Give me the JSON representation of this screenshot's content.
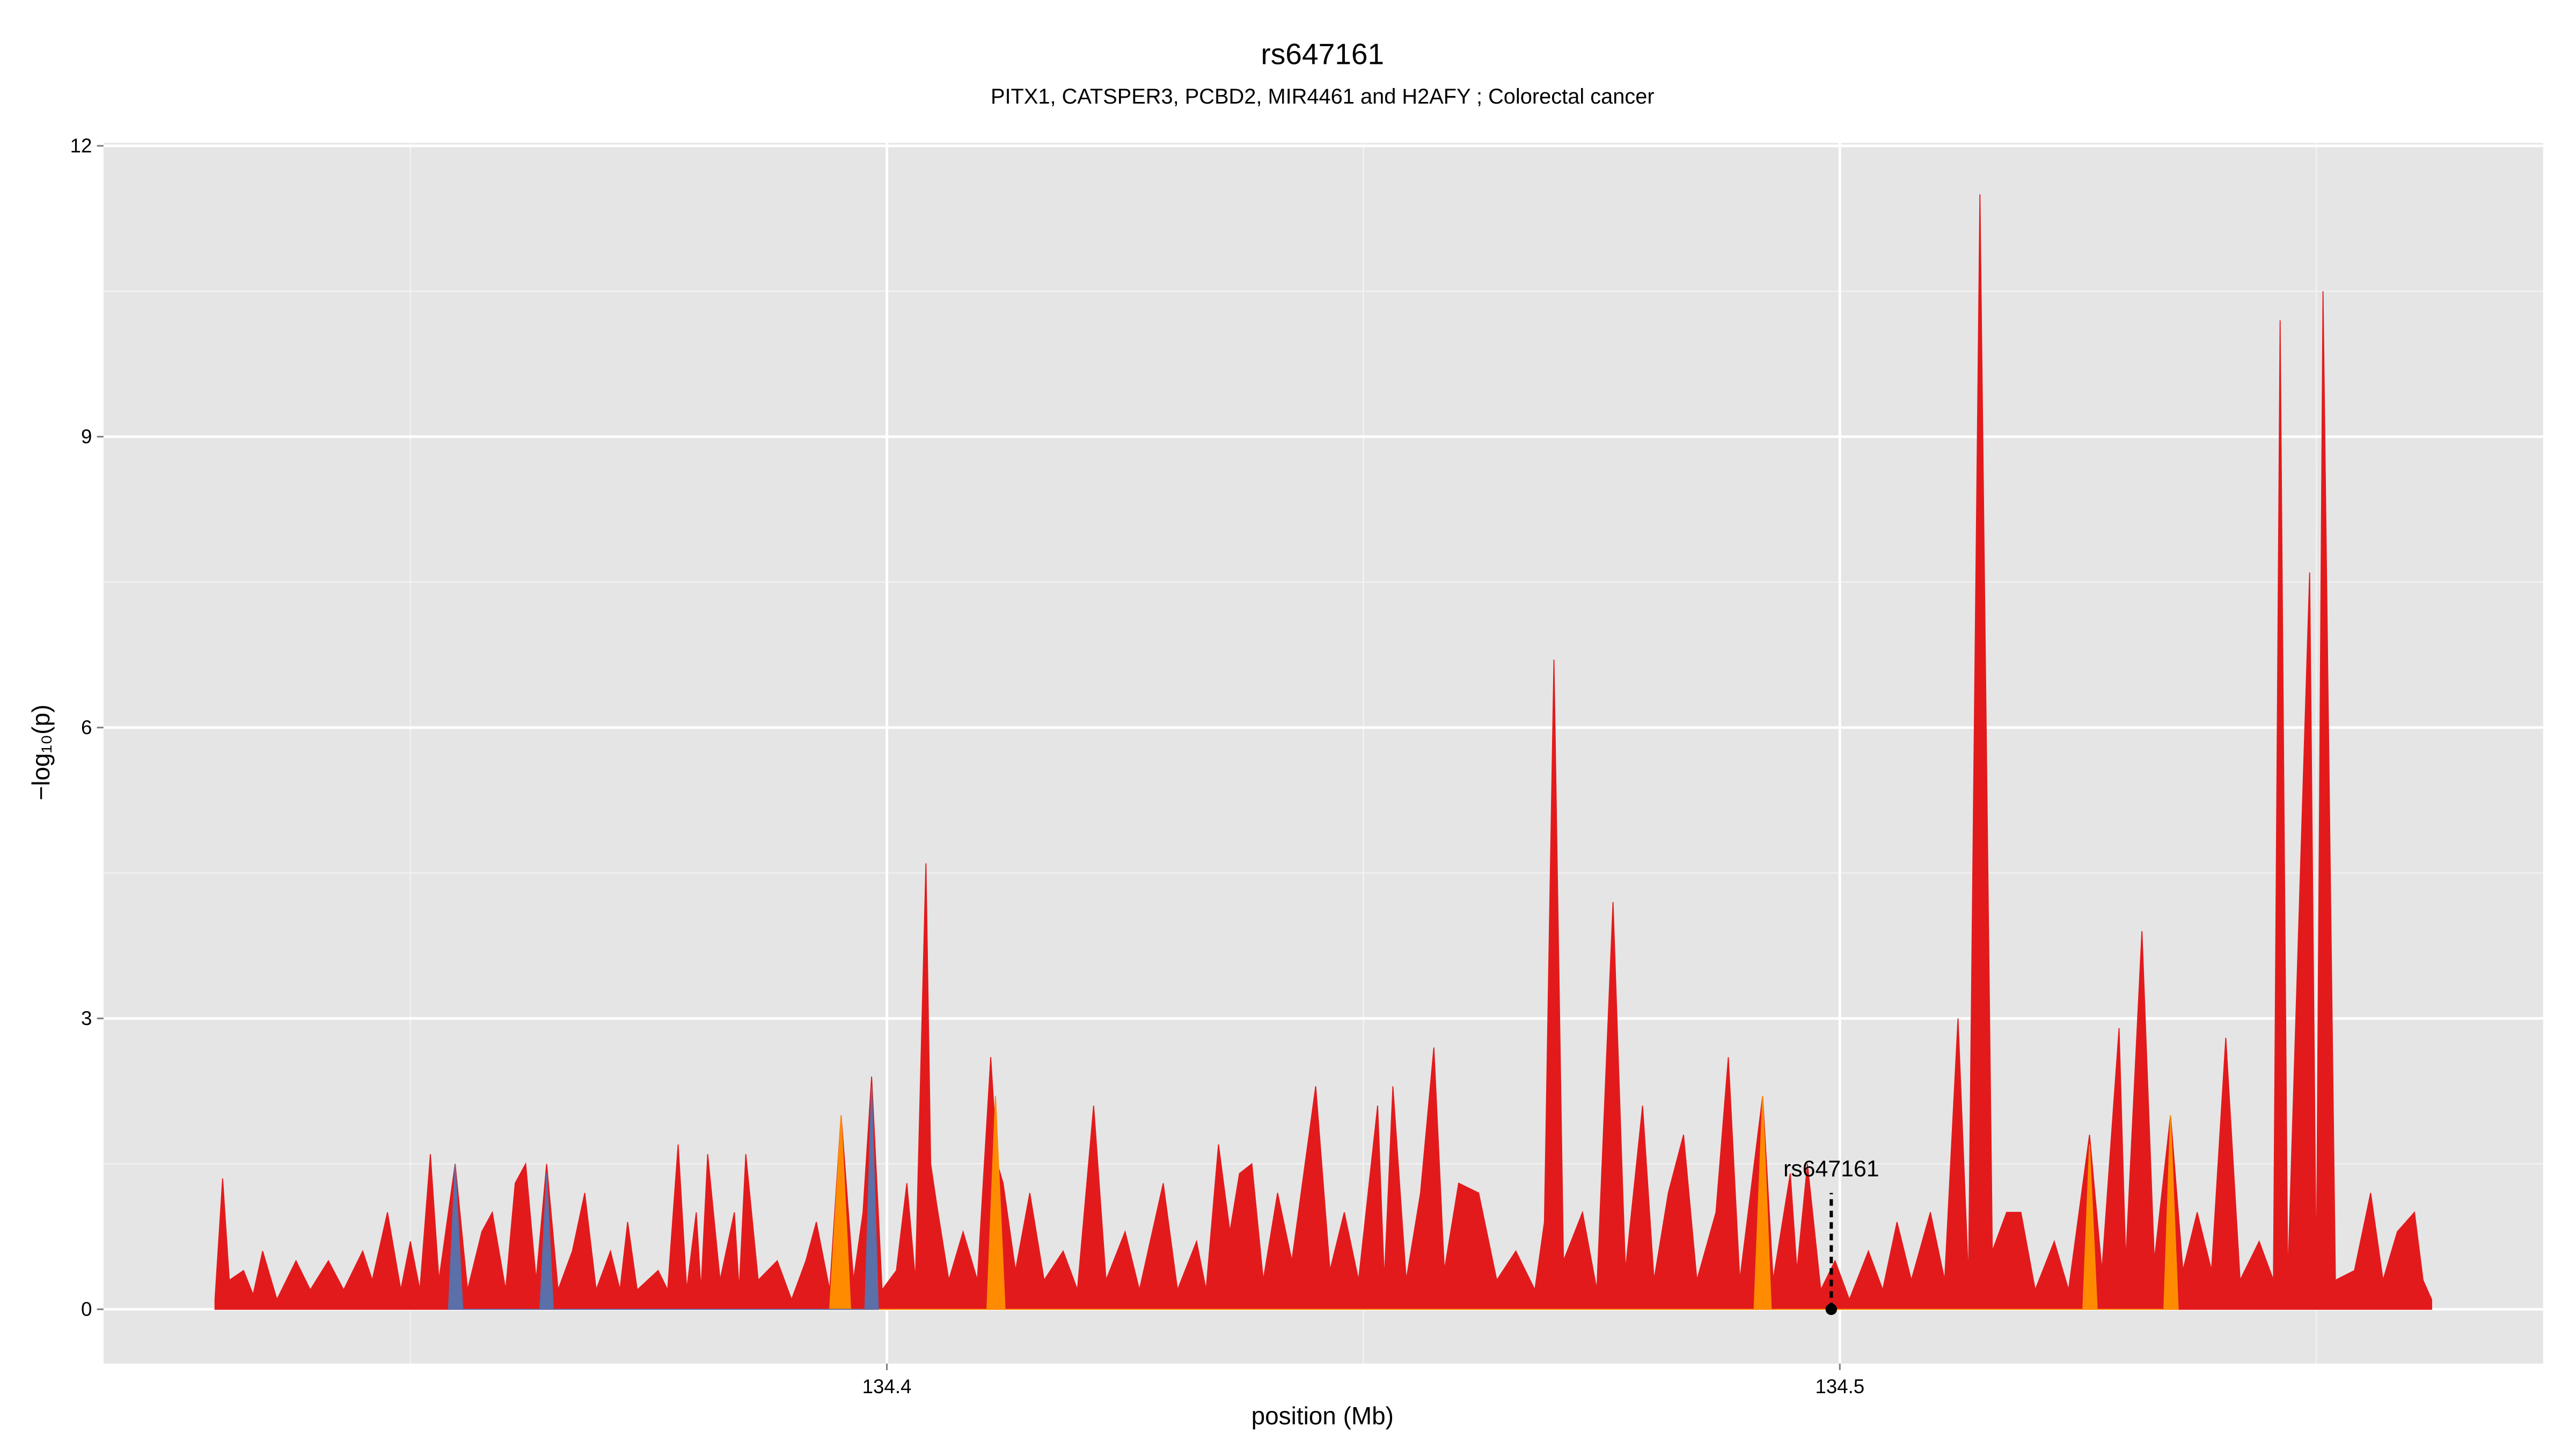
{
  "chart_data": {
    "type": "area",
    "title": "rs647161",
    "subtitle": "PITX1, CATSPER3, PCBD2, MIR4461 and H2AFY ; Colorectal cancer",
    "x_label": "position (Mb)",
    "y_label": "−log₁₀(p)",
    "xlim": [
      134.3178,
      134.5738
    ],
    "ylim": [
      -0.56,
      12.03
    ],
    "xticks": [
      134.4,
      134.5
    ],
    "yticks": [
      0,
      3,
      6,
      9,
      12
    ],
    "grid": true,
    "series": [
      {
        "color": "#e31a1c",
        "x": [
          134.3295,
          134.3303,
          134.331,
          134.3325,
          134.3335,
          134.3345,
          134.336,
          134.338,
          134.3395,
          134.3414,
          134.343,
          134.345,
          134.346,
          134.3476,
          134.349,
          134.35,
          134.351,
          134.3521,
          134.353,
          134.3547,
          134.356,
          134.3575,
          134.3586,
          134.36,
          134.361,
          134.3621,
          134.3632,
          134.3643,
          134.3655,
          134.367,
          134.3683,
          134.3695,
          134.371,
          134.372,
          134.3728,
          134.3738,
          134.376,
          134.377,
          134.3781,
          134.379,
          134.38,
          134.3805,
          134.3812,
          134.3825,
          134.384,
          134.3845,
          134.3852,
          134.3865,
          134.3885,
          134.39,
          134.3915,
          134.3926,
          134.394,
          134.3952,
          134.3965,
          134.3975,
          134.3984,
          134.3995,
          134.401,
          134.4021,
          134.403,
          134.4041,
          134.4046,
          134.4052,
          134.4065,
          134.408,
          134.4095,
          134.4109,
          134.4116,
          134.4122,
          134.4135,
          134.415,
          134.4165,
          134.4185,
          134.42,
          134.4217,
          134.423,
          134.425,
          134.4265,
          134.429,
          134.4305,
          134.4325,
          134.4335,
          134.4348,
          134.436,
          134.437,
          134.4383,
          134.4395,
          134.441,
          134.4425,
          134.445,
          134.4465,
          134.448,
          134.4495,
          134.4515,
          134.4522,
          134.4531,
          134.4545,
          134.456,
          134.4574,
          134.4585,
          134.46,
          134.4621,
          134.464,
          134.466,
          134.468,
          134.469,
          134.47,
          134.471,
          134.473,
          134.4745,
          134.4762,
          134.4775,
          134.4793,
          134.4805,
          134.482,
          134.4836,
          134.485,
          134.487,
          134.4883,
          134.4895,
          134.4919,
          134.493,
          134.4948,
          134.4955,
          134.4966,
          134.498,
          134.4995,
          134.501,
          134.503,
          134.5045,
          134.506,
          134.5075,
          134.5095,
          134.511,
          134.5124,
          134.5135,
          134.5147,
          134.516,
          134.5175,
          134.519,
          134.5205,
          134.5225,
          134.524,
          134.5262,
          134.5275,
          134.5293,
          134.53,
          134.5317,
          134.533,
          134.5347,
          134.536,
          134.5375,
          134.539,
          134.5405,
          134.542,
          134.544,
          134.5455,
          134.5462,
          134.547,
          134.5493,
          134.55,
          134.5507,
          134.552,
          134.554,
          134.5557,
          134.557,
          134.5585,
          134.5603,
          134.5612,
          134.5621
        ],
        "values": [
          0.1,
          1.35,
          0.3,
          0.4,
          0.15,
          0.6,
          0.1,
          0.5,
          0.2,
          0.5,
          0.2,
          0.6,
          0.3,
          1.0,
          0.2,
          0.7,
          0.2,
          1.6,
          0.3,
          1.5,
          0.2,
          0.8,
          1.0,
          0.2,
          1.3,
          1.5,
          0.3,
          1.5,
          0.2,
          0.6,
          1.2,
          0.2,
          0.6,
          0.2,
          0.9,
          0.2,
          0.4,
          0.2,
          1.7,
          0.2,
          1.0,
          0.2,
          1.6,
          0.3,
          1.0,
          0.2,
          1.6,
          0.3,
          0.5,
          0.1,
          0.5,
          0.9,
          0.2,
          2.0,
          0.3,
          1.0,
          2.4,
          0.2,
          0.4,
          1.3,
          0.3,
          4.6,
          1.5,
          1.1,
          0.3,
          0.8,
          0.3,
          2.6,
          1.5,
          1.3,
          0.4,
          1.2,
          0.3,
          0.6,
          0.2,
          2.1,
          0.3,
          0.8,
          0.2,
          1.3,
          0.2,
          0.7,
          0.2,
          1.7,
          0.8,
          1.4,
          1.5,
          0.3,
          1.2,
          0.5,
          2.3,
          0.4,
          1.0,
          0.3,
          2.1,
          0.3,
          2.3,
          0.3,
          1.2,
          2.7,
          0.4,
          1.3,
          1.2,
          0.3,
          0.6,
          0.2,
          0.9,
          6.7,
          0.5,
          1.0,
          0.2,
          4.2,
          0.4,
          2.1,
          0.3,
          1.2,
          1.8,
          0.3,
          1.0,
          2.6,
          0.3,
          2.2,
          0.3,
          1.4,
          0.4,
          1.5,
          0.2,
          0.5,
          0.1,
          0.6,
          0.2,
          0.9,
          0.3,
          1.0,
          0.3,
          3.0,
          0.3,
          11.5,
          0.6,
          1.0,
          1.0,
          0.2,
          0.7,
          0.2,
          1.8,
          0.4,
          2.9,
          0.5,
          3.9,
          0.5,
          2.0,
          0.4,
          1.0,
          0.4,
          2.8,
          0.3,
          0.7,
          0.3,
          10.2,
          0.3,
          7.6,
          0.3,
          10.5,
          0.3,
          0.4,
          1.2,
          0.3,
          0.8,
          1.0,
          0.3,
          0.1
        ]
      },
      {
        "color": "#ff8c00",
        "x": [
          134.394,
          134.3952,
          134.3962,
          134.4105,
          134.4114,
          134.4124,
          134.491,
          134.4919,
          134.4928,
          134.5255,
          134.5262,
          134.527,
          134.534,
          134.5347,
          134.5355
        ],
        "values": [
          0,
          2.0,
          0,
          0,
          2.2,
          0,
          0,
          2.2,
          0,
          0,
          1.7,
          0,
          0,
          2.0,
          0
        ]
      },
      {
        "color": "#5b6fa8",
        "x": [
          134.354,
          134.3547,
          134.3555,
          134.3636,
          134.3643,
          134.365,
          134.3977,
          134.3984,
          134.3991
        ],
        "values": [
          0,
          1.5,
          0,
          0,
          1.4,
          0,
          0,
          2.3,
          0
        ]
      }
    ],
    "annotation": {
      "text": "rs647161",
      "x": 134.4991,
      "y": 0
    }
  }
}
